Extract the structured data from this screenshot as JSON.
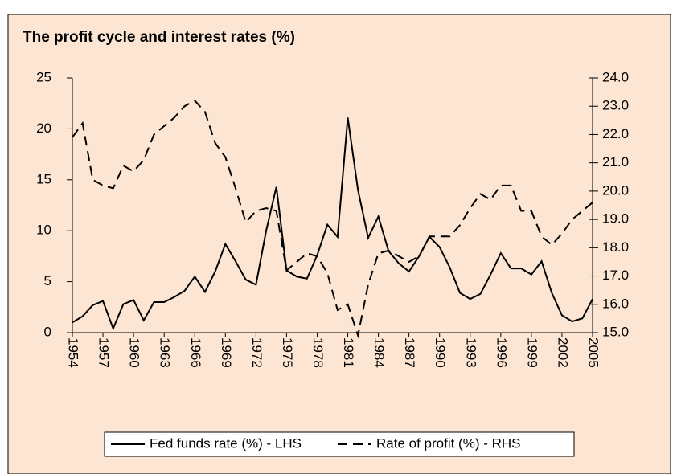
{
  "chart_data": {
    "type": "line",
    "title": "The profit cycle and interest rates (%)",
    "x": [
      1954,
      1955,
      1956,
      1957,
      1958,
      1959,
      1960,
      1961,
      1962,
      1963,
      1964,
      1965,
      1966,
      1967,
      1968,
      1969,
      1970,
      1971,
      1972,
      1973,
      1974,
      1975,
      1976,
      1977,
      1978,
      1979,
      1980,
      1981,
      1982,
      1983,
      1984,
      1985,
      1986,
      1987,
      1988,
      1989,
      1990,
      1991,
      1992,
      1993,
      1994,
      1995,
      1996,
      1997,
      1998,
      1999,
      2000,
      2001,
      2002,
      2003,
      2004,
      2005
    ],
    "xlim": [
      1954,
      2005
    ],
    "xticks": [
      1954,
      1957,
      1960,
      1963,
      1966,
      1969,
      1972,
      1975,
      1978,
      1981,
      1984,
      1987,
      1990,
      1993,
      1996,
      1999,
      2002,
      2005
    ],
    "ylim": [
      0,
      25
    ],
    "yticks": [
      0,
      5,
      10,
      15,
      20,
      25
    ],
    "y2lim": [
      15,
      24
    ],
    "y2ticks": [
      {
        "value": 15,
        "label": "15.0"
      },
      {
        "value": 16,
        "label": "16.0"
      },
      {
        "value": 17,
        "label": "17.0"
      },
      {
        "value": 18,
        "label": "18.0"
      },
      {
        "value": 19,
        "label": "19.0"
      },
      {
        "value": 20,
        "label": "20.0"
      },
      {
        "value": 21,
        "label": "21.0"
      },
      {
        "value": 22,
        "label": "22.0"
      },
      {
        "value": 23,
        "label": "23.0"
      },
      {
        "value": 24,
        "label": "24.0"
      }
    ],
    "series": [
      {
        "name": "Fed funds rate (%) - LHS",
        "color": "#000000",
        "style": "solid",
        "axis": "y",
        "values": [
          1.0,
          1.6,
          2.7,
          3.1,
          0.4,
          2.8,
          3.2,
          1.2,
          3.0,
          3.0,
          3.5,
          4.1,
          5.5,
          4.0,
          6.0,
          8.7,
          7.0,
          5.2,
          4.7,
          10.0,
          14.3,
          6.1,
          5.5,
          5.3,
          7.6,
          10.6,
          9.4,
          21.1,
          14.0,
          9.3,
          11.4,
          8.0,
          6.8,
          6.0,
          7.5,
          9.4,
          8.4,
          6.4,
          3.9,
          3.3,
          3.8,
          5.7,
          7.8,
          6.3,
          6.3,
          5.7,
          7.0,
          3.9,
          1.7,
          1.1,
          1.4,
          3.3
        ]
      },
      {
        "name": "Rate of profit (%) - RHS",
        "color": "#000000",
        "style": "dashed",
        "axis": "y2",
        "values": [
          21.9,
          22.4,
          20.4,
          20.2,
          20.1,
          20.9,
          20.7,
          21.1,
          22.0,
          22.3,
          22.6,
          23.0,
          23.2,
          22.8,
          21.7,
          21.2,
          20.1,
          18.9,
          19.3,
          19.4,
          19.3,
          17.2,
          17.5,
          17.8,
          17.7,
          17.1,
          15.8,
          16.0,
          14.9,
          16.7,
          17.8,
          17.9,
          17.7,
          17.5,
          17.7,
          18.4,
          18.4,
          18.4,
          18.8,
          19.4,
          19.9,
          19.7,
          20.2,
          20.2,
          19.3,
          19.3,
          18.4,
          18.1,
          18.5,
          19.0,
          19.3,
          19.6
        ]
      }
    ],
    "legend": "bottom"
  }
}
